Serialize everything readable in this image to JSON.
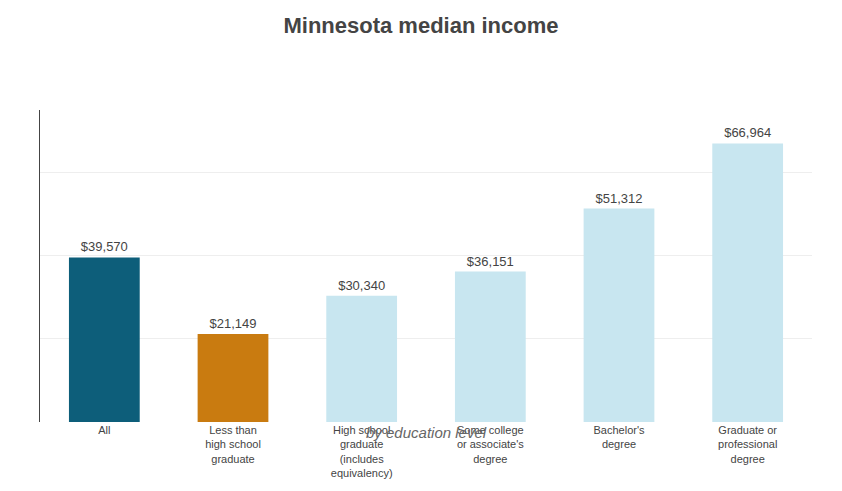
{
  "chart_data": {
    "type": "bar",
    "title": "Minnesota median income",
    "subtitle": "by education level",
    "categories": [
      "All",
      "Less than\nhigh school\ngraduate",
      "High school\ngraduate\n(includes\nequivalency)",
      "Some college\nor associate's\ndegree",
      "Bachelor's\ndegree",
      "Graduate or\nprofessional\ndegree"
    ],
    "values": [
      39570,
      21149,
      30340,
      36151,
      51312,
      66964
    ],
    "value_labels": [
      "$39,570",
      "$21,149",
      "$30,340",
      "$36,151",
      "$51,312",
      "$66,964"
    ],
    "data_labels": true,
    "colors": [
      "#0d5e7a",
      "#c97b10",
      "#c8e6f0",
      "#c8e6f0",
      "#c8e6f0",
      "#c8e6f0"
    ],
    "ylim": [
      0,
      75000
    ],
    "yticks": [
      0,
      20000,
      40000,
      60000
    ],
    "grid": true,
    "tick_labels": "x"
  }
}
